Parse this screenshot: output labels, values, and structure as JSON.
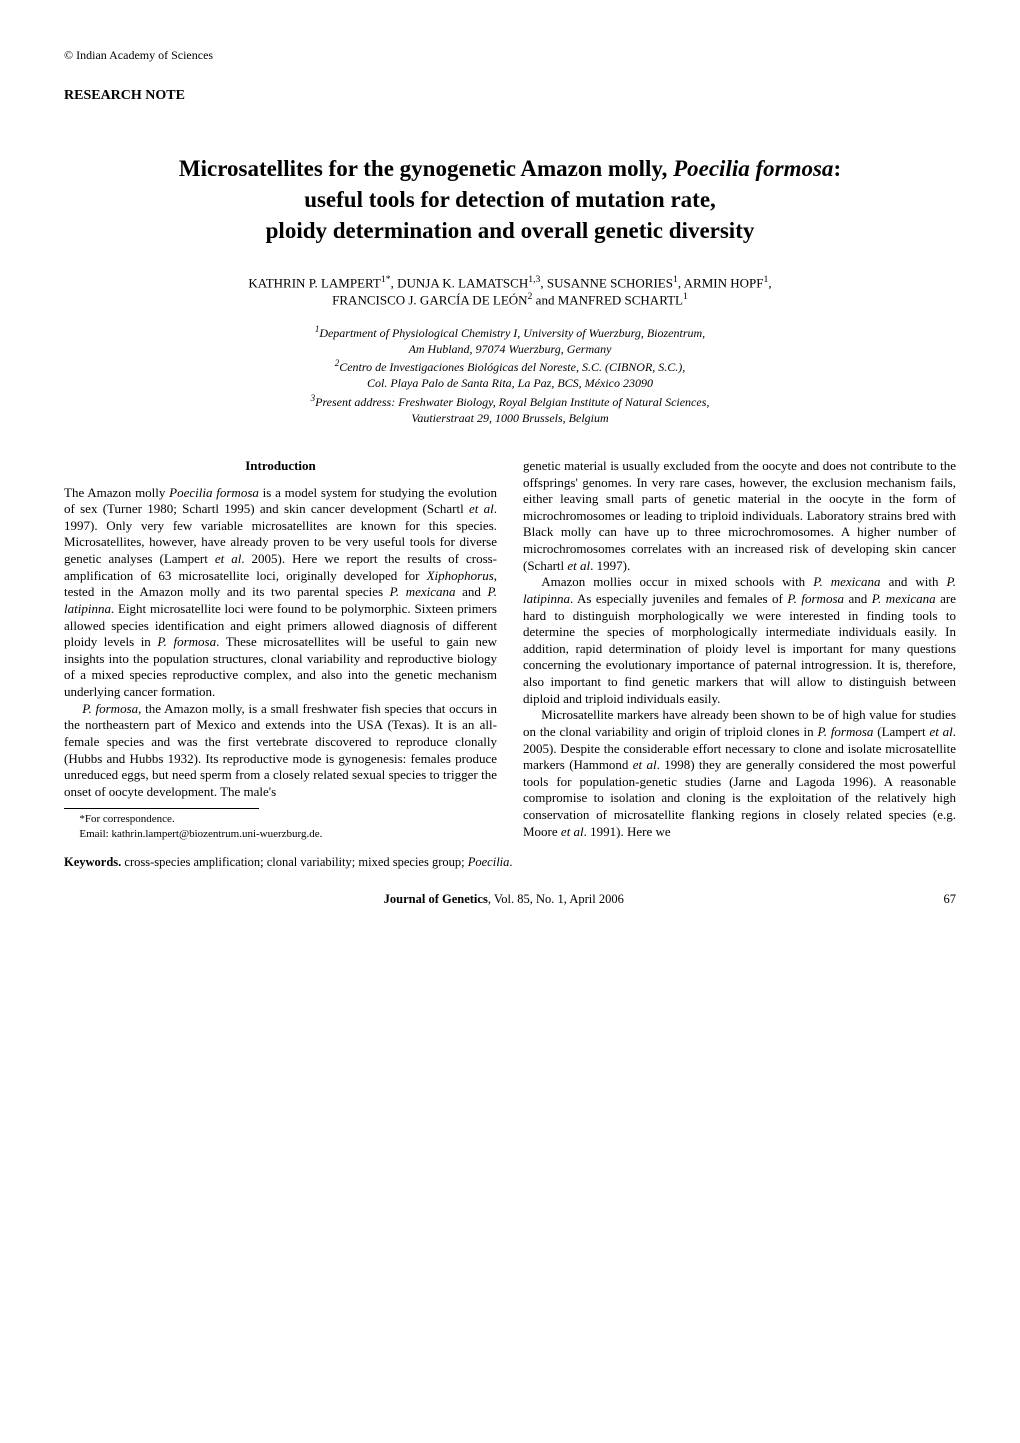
{
  "copyright_symbol": "©",
  "copyright": "Indian Academy of Sciences",
  "section_label": "RESEARCH NOTE",
  "title_line1": "Microsatellites for the gynogenetic Amazon molly, ",
  "title_species": "Poecilia formosa",
  "title_line1_suffix": ":",
  "title_line2": "useful tools for detection of mutation rate,",
  "title_line3": "ploidy determination and overall genetic diversity",
  "authors": {
    "a1": "KATHRIN P. LAMPERT",
    "a1_sup": "1*",
    "a2": "DUNJA K. LAMATSCH",
    "a2_sup": "1,3",
    "a3": "SUSANNE SCHORIES",
    "a3_sup": "1",
    "a4": "ARMIN HOPF",
    "a4_sup": "1",
    "a5": "FRANCISCO J. GARCÍA DE LEÓN",
    "a5_sup": "2",
    "and": " and ",
    "a6": "MANFRED SCHARTL",
    "a6_sup": "1"
  },
  "affiliations": {
    "aff1_sup": "1",
    "aff1_line1": "Department of Physiological Chemistry I, University of Wuerzburg, Biozentrum,",
    "aff1_line2": "Am Hubland, 97074 Wuerzburg, Germany",
    "aff2_sup": "2",
    "aff2_line1": "Centro de Investigaciones Biológicas del Noreste, S.C. (CIBNOR, S.C.),",
    "aff2_line2": "Col. Playa Palo de Santa Rita, La Paz, BCS, México 23090",
    "aff3_sup": "3",
    "aff3_line1": "Present address: Freshwater Biology, Royal Belgian Institute of Natural Sciences,",
    "aff3_line2": "Vautierstraat 29, 1000 Brussels, Belgium"
  },
  "intro_heading": "Introduction",
  "p1a": "The Amazon molly ",
  "p1a_ital": "Poecilia formosa",
  "p1b": " is a model system for studying the evolution of sex (Turner 1980; Schartl 1995) and skin cancer development (Schartl ",
  "p1b_ital": "et al",
  "p1c": ". 1997). Only very few variable microsatellites are known for this species. Microsatellites, however, have already proven to be very useful tools for diverse genetic analyses (Lampert ",
  "p1c_ital": "et al",
  "p1d": ". 2005). Here we report the results of cross-amplification of 63 microsatellite loci, originally developed for ",
  "p1d_ital": "Xiphophorus",
  "p1e": ", tested in the Amazon molly and its two parental species ",
  "p1e_ital": "P. mexicana",
  "p1f": " and ",
  "p1f_ital": "P. latipinna",
  "p1g": ". Eight microsatellite loci were found to be polymorphic. Sixteen primers allowed species identification and eight primers allowed diagnosis of different ploidy levels in ",
  "p1g_ital": "P. formosa",
  "p1h": ". These microsatellites will be useful to gain new insights into the population structures, clonal variability and reproductive biology of a mixed species reproductive complex, and also into the genetic mechanism underlying cancer formation.",
  "p2a_ital": "P. formosa",
  "p2b": ", the Amazon molly, is a small freshwater fish species that occurs in the northeastern part of Mexico and extends into the USA (Texas). It is an all-female species and was the first vertebrate discovered to reproduce clonally (Hubbs and Hubbs 1932). Its reproductive mode is gynogenesis: females produce unreduced eggs, but need sperm from a closely related sexual species to trigger the onset of oocyte development. The male's",
  "c2_p1": "genetic material is usually excluded from the oocyte and does not contribute to the offsprings' genomes. In very rare cases, however, the exclusion mechanism fails, either leaving small parts of genetic material in the oocyte in the form of microchromosomes or leading to triploid individuals. Laboratory strains bred with Black molly can have up to three microchromosomes. A higher number of microchromosomes correlates with an increased risk of developing skin cancer (Schartl ",
  "c2_p1_ital": "et al",
  "c2_p1b": ". 1997).",
  "c2_p2a": "Amazon mollies occur in mixed schools with ",
  "c2_p2a_ital1": "P. mexicana",
  "c2_p2b": " and with ",
  "c2_p2b_ital": "P. latipinna",
  "c2_p2c": ". As especially juveniles and females of ",
  "c2_p2c_ital1": "P. formosa",
  "c2_p2d": " and ",
  "c2_p2d_ital": "P. mexicana",
  "c2_p2e": " are hard to distinguish morphologically we were interested in finding tools to determine the species of morphologically intermediate individuals easily. In addition, rapid determination of ploidy level is important for many questions concerning the evolutionary importance of paternal introgression. It is, therefore, also important to find genetic markers that will allow to distinguish between diploid and triploid individuals easily.",
  "c2_p3a": "Microsatellite markers have already been shown to be of high value for studies on the clonal variability and origin of triploid clones in ",
  "c2_p3a_ital": "P. formosa",
  "c2_p3b": " (Lampert ",
  "c2_p3b_ital": "et al",
  "c2_p3c": ". 2005). Despite the considerable effort necessary to clone and isolate microsatellite markers (Hammond ",
  "c2_p3c_ital": "et al",
  "c2_p3d": ". 1998) they are generally considered the most powerful tools for population-genetic studies (Jarne and Lagoda 1996). A reasonable compromise to isolation and cloning is the exploitation of the relatively high conservation of microsatellite flanking regions in closely related species (e.g. Moore ",
  "c2_p3d_ital": "et al",
  "c2_p3e": ". 1991). Here we",
  "footnote_corr": "*For correspondence.",
  "footnote_email": "Email: kathrin.lampert@biozentrum.uni-wuerzburg.de.",
  "keywords_label": "Keywords.",
  "keywords_text": " cross-species amplification; clonal variability; mixed species group; ",
  "keywords_ital": "Poecilia",
  "keywords_period": ".",
  "footer_journal": "Journal of Genetics",
  "footer_issue": ", Vol. 85, No. 1, April 2006",
  "footer_page": "67"
}
